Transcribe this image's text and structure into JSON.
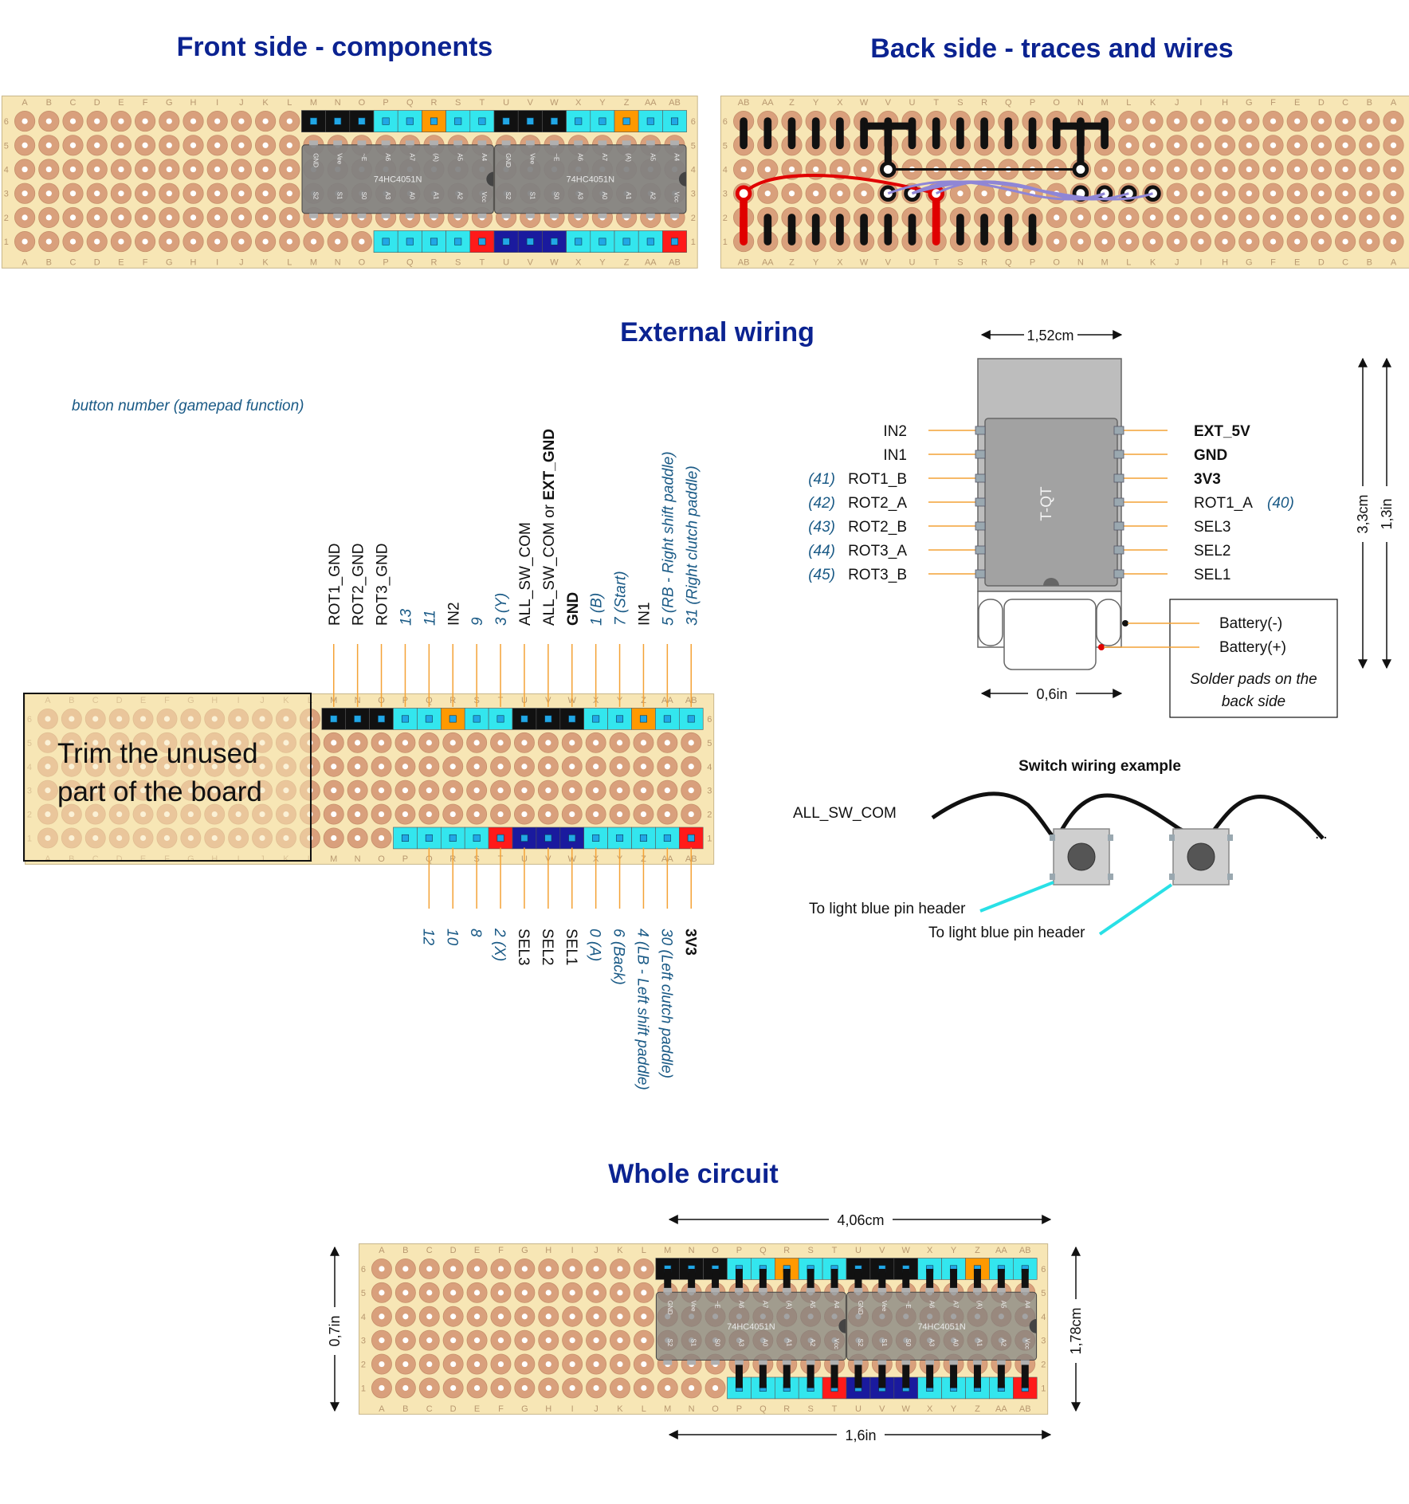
{
  "titles": {
    "front": "Front side - components",
    "back": "Back side - traces and wires",
    "external": "External wiring",
    "whole": "Whole circuit"
  },
  "board": {
    "columns": [
      "A",
      "B",
      "C",
      "D",
      "E",
      "F",
      "G",
      "H",
      "I",
      "J",
      "K",
      "L",
      "M",
      "N",
      "O",
      "P",
      "Q",
      "R",
      "S",
      "T",
      "U",
      "V",
      "W",
      "X",
      "Y",
      "Z",
      "AA",
      "AB"
    ],
    "rows": [
      "6",
      "5",
      "4",
      "3",
      "2",
      "1"
    ],
    "chip_label": "74HC4051N",
    "chip_pins_top": [
      "GND",
      "Vee",
      "~E",
      "A6",
      "A7",
      "(A)",
      "A5",
      "A4"
    ],
    "chip_pins_bottom": [
      "S2",
      "S1",
      "S0",
      "A3",
      "A0",
      "A1",
      "A2",
      "Vcc"
    ]
  },
  "legend_note": "button number (gamepad function)",
  "trim_note": {
    "line1": "Trim the unused",
    "line2": "part of the board"
  },
  "top_labels": [
    {
      "text": "ROT1_GND",
      "style": "n"
    },
    {
      "text": "ROT2_GND",
      "style": "n"
    },
    {
      "text": "ROT3_GND",
      "style": "n"
    },
    {
      "text": "13",
      "style": "f"
    },
    {
      "text": "11",
      "style": "f"
    },
    {
      "text": "IN2",
      "style": "n"
    },
    {
      "text": "9",
      "style": "f"
    },
    {
      "text": "3 (Y)",
      "style": "f"
    },
    {
      "text": "ALL_SW_COM",
      "style": "n"
    },
    {
      "text": "ALL_SW_COM or ",
      "bold": "EXT_GND",
      "style": "n"
    },
    {
      "text": "GND",
      "style": "b"
    },
    {
      "text": "1 (B)",
      "style": "f"
    },
    {
      "text": "7 (Start)",
      "style": "f"
    },
    {
      "text": "IN1",
      "style": "n"
    },
    {
      "text": "5 (RB - Right shift paddle)",
      "style": "f"
    },
    {
      "text": "31 (Right clutch paddle)",
      "style": "f"
    }
  ],
  "bottom_labels": [
    {
      "text": "12",
      "style": "f"
    },
    {
      "text": "10",
      "style": "f"
    },
    {
      "text": "8",
      "style": "f"
    },
    {
      "text": "2 (X)",
      "style": "f"
    },
    {
      "text": "SEL3",
      "style": "n"
    },
    {
      "text": "SEL2",
      "style": "n"
    },
    {
      "text": "SEL1",
      "style": "n"
    },
    {
      "text": "0 (A)",
      "style": "f"
    },
    {
      "text": "6 (Back)",
      "style": "f"
    },
    {
      "text": "4 (LB - Left shift paddle)",
      "style": "f"
    },
    {
      "text": "30 (Left clutch paddle)",
      "style": "f"
    },
    {
      "text": "3V3",
      "style": "b"
    }
  ],
  "tqt": {
    "name": "T-QT",
    "left_pins": [
      {
        "num": "",
        "name": "IN2"
      },
      {
        "num": "",
        "name": "IN1"
      },
      {
        "num": "(41)",
        "name": "ROT1_B"
      },
      {
        "num": "(42)",
        "name": "ROT2_A"
      },
      {
        "num": "(43)",
        "name": "ROT2_B"
      },
      {
        "num": "(44)",
        "name": "ROT3_A"
      },
      {
        "num": "(45)",
        "name": "ROT3_B"
      }
    ],
    "right_pins": [
      {
        "name": "EXT_5V",
        "bold": true,
        "num": ""
      },
      {
        "name": "GND",
        "bold": true,
        "num": ""
      },
      {
        "name": "3V3",
        "bold": true,
        "num": ""
      },
      {
        "name": "ROT1_A",
        "bold": false,
        "num": "(40)"
      },
      {
        "name": "SEL3",
        "bold": false,
        "num": ""
      },
      {
        "name": "SEL2",
        "bold": false,
        "num": ""
      },
      {
        "name": "SEL1",
        "bold": false,
        "num": ""
      }
    ],
    "battery_minus": "Battery(-)",
    "battery_plus": "Battery(+)",
    "pads_note1": "Solder pads on the",
    "pads_note2": "back side",
    "dim_width_cm": "1,52cm",
    "dim_width_in": "0,6in",
    "dim_height_cm": "3,3cm",
    "dim_height_in": "1,3in"
  },
  "switch_example": {
    "title": "Switch wiring example",
    "com_label": "ALL_SW_COM",
    "header1": "To light blue pin header",
    "header2": "To light blue pin header",
    "ellipsis": "..."
  },
  "whole_dims": {
    "width_cm": "4,06cm",
    "width_in": "1,6in",
    "height_in": "0,7in",
    "height_cm": "1,78cm"
  },
  "colors": {
    "title": "#0b2391",
    "board": "#f7e6b5",
    "pad": "#d9a07c",
    "header_cyan": "#33e6ee",
    "header_black": "#111111",
    "header_orange": "#ff9900",
    "header_red": "#ff1a1a",
    "header_navy": "#1a1a9e",
    "wire_purple": "#8f86d6",
    "wire_red": "#e00000",
    "func_label": "#1a5a86"
  }
}
